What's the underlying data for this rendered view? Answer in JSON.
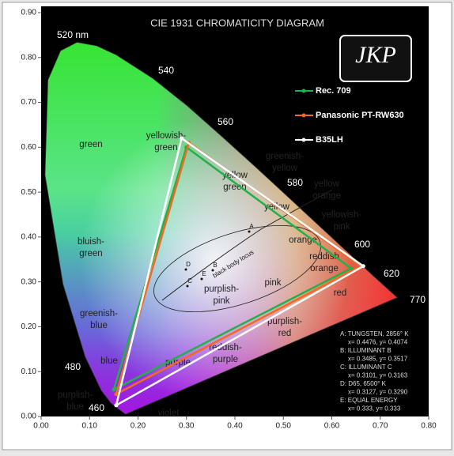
{
  "chart_data": {
    "type": "line",
    "title": "CIE 1931 CHROMATICITY DIAGRAM",
    "logo": "JKP",
    "xlim": [
      0,
      0.8
    ],
    "ylim": [
      0,
      0.9
    ],
    "xticks": [
      {
        "value": 0,
        "label": "0.00"
      },
      {
        "value": 0.1,
        "label": "0.10"
      },
      {
        "value": 0.2,
        "label": "0.20"
      },
      {
        "value": 0.3,
        "label": "0.30"
      },
      {
        "value": 0.4,
        "label": "0.40"
      },
      {
        "value": 0.5,
        "label": "0.50"
      },
      {
        "value": 0.6,
        "label": "0.60"
      },
      {
        "value": 0.7,
        "label": "0.70"
      },
      {
        "value": 0.8,
        "label": "0.80"
      }
    ],
    "yticks": [
      {
        "value": 0,
        "label": "0.00"
      },
      {
        "value": 0.1,
        "label": "0.10"
      },
      {
        "value": 0.2,
        "label": "0.20"
      },
      {
        "value": 0.3,
        "label": "0.30"
      },
      {
        "value": 0.4,
        "label": "0.40"
      },
      {
        "value": 0.5,
        "label": "0.50"
      },
      {
        "value": 0.6,
        "label": "0.60"
      },
      {
        "value": 0.7,
        "label": "0.70"
      },
      {
        "value": 0.8,
        "label": "0.80"
      },
      {
        "value": 0.9,
        "label": "0.90"
      }
    ],
    "series": [
      {
        "name": "Rec. 709",
        "color": "#22b04a",
        "x": [
          0.64,
          0.3,
          0.15
        ],
        "values": [
          0.33,
          0.6,
          0.06
        ]
      },
      {
        "name": "Panasonic PT-RW630",
        "color": "#f26a21",
        "x": [
          0.66,
          0.305,
          0.155
        ],
        "values": [
          0.335,
          0.61,
          0.05
        ]
      },
      {
        "name": "B35LH",
        "color": "#ffffff",
        "x": [
          0.665,
          0.29,
          0.155
        ],
        "values": [
          0.335,
          0.62,
          0.025
        ]
      }
    ],
    "wavelengths": [
      "520 nm",
      "540",
      "560",
      "580",
      "600",
      "620",
      "770",
      "480",
      "460"
    ],
    "regions": [
      [
        "green"
      ],
      [
        "yellowish-",
        "green"
      ],
      [
        "greenish-",
        "yellow"
      ],
      [
        "yellow",
        "green"
      ],
      [
        "yellow",
        "orange"
      ],
      [
        "yellow"
      ],
      [
        "yellowish-",
        "pink"
      ],
      [
        "orange"
      ],
      [
        "reddish",
        "orange"
      ],
      [
        "pink"
      ],
      [
        "red"
      ],
      [
        "bluish-",
        "green"
      ],
      [
        "purplish-",
        "pink"
      ],
      [
        "purplish-",
        "red"
      ],
      [
        "greenish-",
        "blue"
      ],
      [
        "blue"
      ],
      [
        "reddish-",
        "purple"
      ],
      [
        "purple"
      ],
      [
        "purplish-",
        "blue"
      ],
      [
        "violet"
      ]
    ],
    "locus_label": "black body locus",
    "points": [
      "A",
      "B",
      "C",
      "D",
      "E"
    ],
    "annotations": [
      "A:  TUNGSTEN, 2856° K",
      "x= 0.4476, y= 0.4074",
      "B:  ILLUMINANT B",
      "x= 0.3485, y= 0.3517",
      "C:  ILLUMINANT C",
      "x= 0.3101, y= 0.3163",
      "D:  D65, 6500° K",
      "x= 0.3127, y= 0.3290",
      "E:  EQUAL ENERGY",
      "x= 0.333, y= 0.333"
    ]
  }
}
